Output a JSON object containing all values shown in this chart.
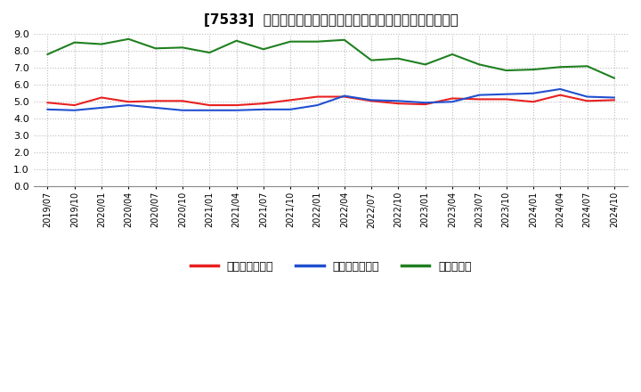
{
  "title": "[7533]  売上債権回転率、買入債務回転率、在庫回転率の推移",
  "x_labels": [
    "2019/07",
    "2019/10",
    "2020/01",
    "2020/04",
    "2020/07",
    "2020/10",
    "2021/01",
    "2021/04",
    "2021/07",
    "2021/10",
    "2022/01",
    "2022/04",
    "2022/07",
    "2022/10",
    "2023/01",
    "2023/04",
    "2023/07",
    "2023/10",
    "2024/01",
    "2024/04",
    "2024/07",
    "2024/10"
  ],
  "red_values": [
    4.95,
    4.8,
    5.25,
    5.0,
    5.05,
    5.05,
    4.8,
    4.8,
    4.9,
    5.1,
    5.3,
    5.3,
    5.05,
    4.9,
    4.85,
    5.2,
    5.15,
    5.15,
    5.0,
    5.4,
    5.05,
    5.1
  ],
  "blue_values": [
    4.55,
    4.5,
    4.65,
    4.8,
    4.65,
    4.5,
    4.5,
    4.5,
    4.55,
    4.55,
    4.8,
    5.35,
    5.1,
    5.05,
    4.95,
    5.0,
    5.4,
    5.45,
    5.5,
    5.75,
    5.3,
    5.25
  ],
  "green_values": [
    7.8,
    8.5,
    8.4,
    8.7,
    8.15,
    8.2,
    7.9,
    8.6,
    8.1,
    8.55,
    8.55,
    8.65,
    7.45,
    7.55,
    7.2,
    7.8,
    7.2,
    6.85,
    6.9,
    7.05,
    7.1,
    6.4
  ],
  "red_color": "#e82020",
  "blue_color": "#2050d0",
  "green_color": "#208020",
  "ylim": [
    0.0,
    9.0
  ],
  "yticks": [
    0.0,
    1.0,
    2.0,
    3.0,
    4.0,
    5.0,
    6.0,
    7.0,
    8.0,
    9.0
  ],
  "ytick_labels": [
    "0.0",
    "1.0",
    "2.0",
    "3.0",
    "4.0",
    "5.0",
    "6.0",
    "7.0",
    "8.0",
    "9.0"
  ],
  "legend_labels": [
    "売上債権回転率",
    "買入債務回転率",
    "在庫回転率"
  ],
  "plot_bg_color": "#ffffff",
  "fig_bg_color": "#ffffff",
  "grid_color": "#bbbbbb"
}
